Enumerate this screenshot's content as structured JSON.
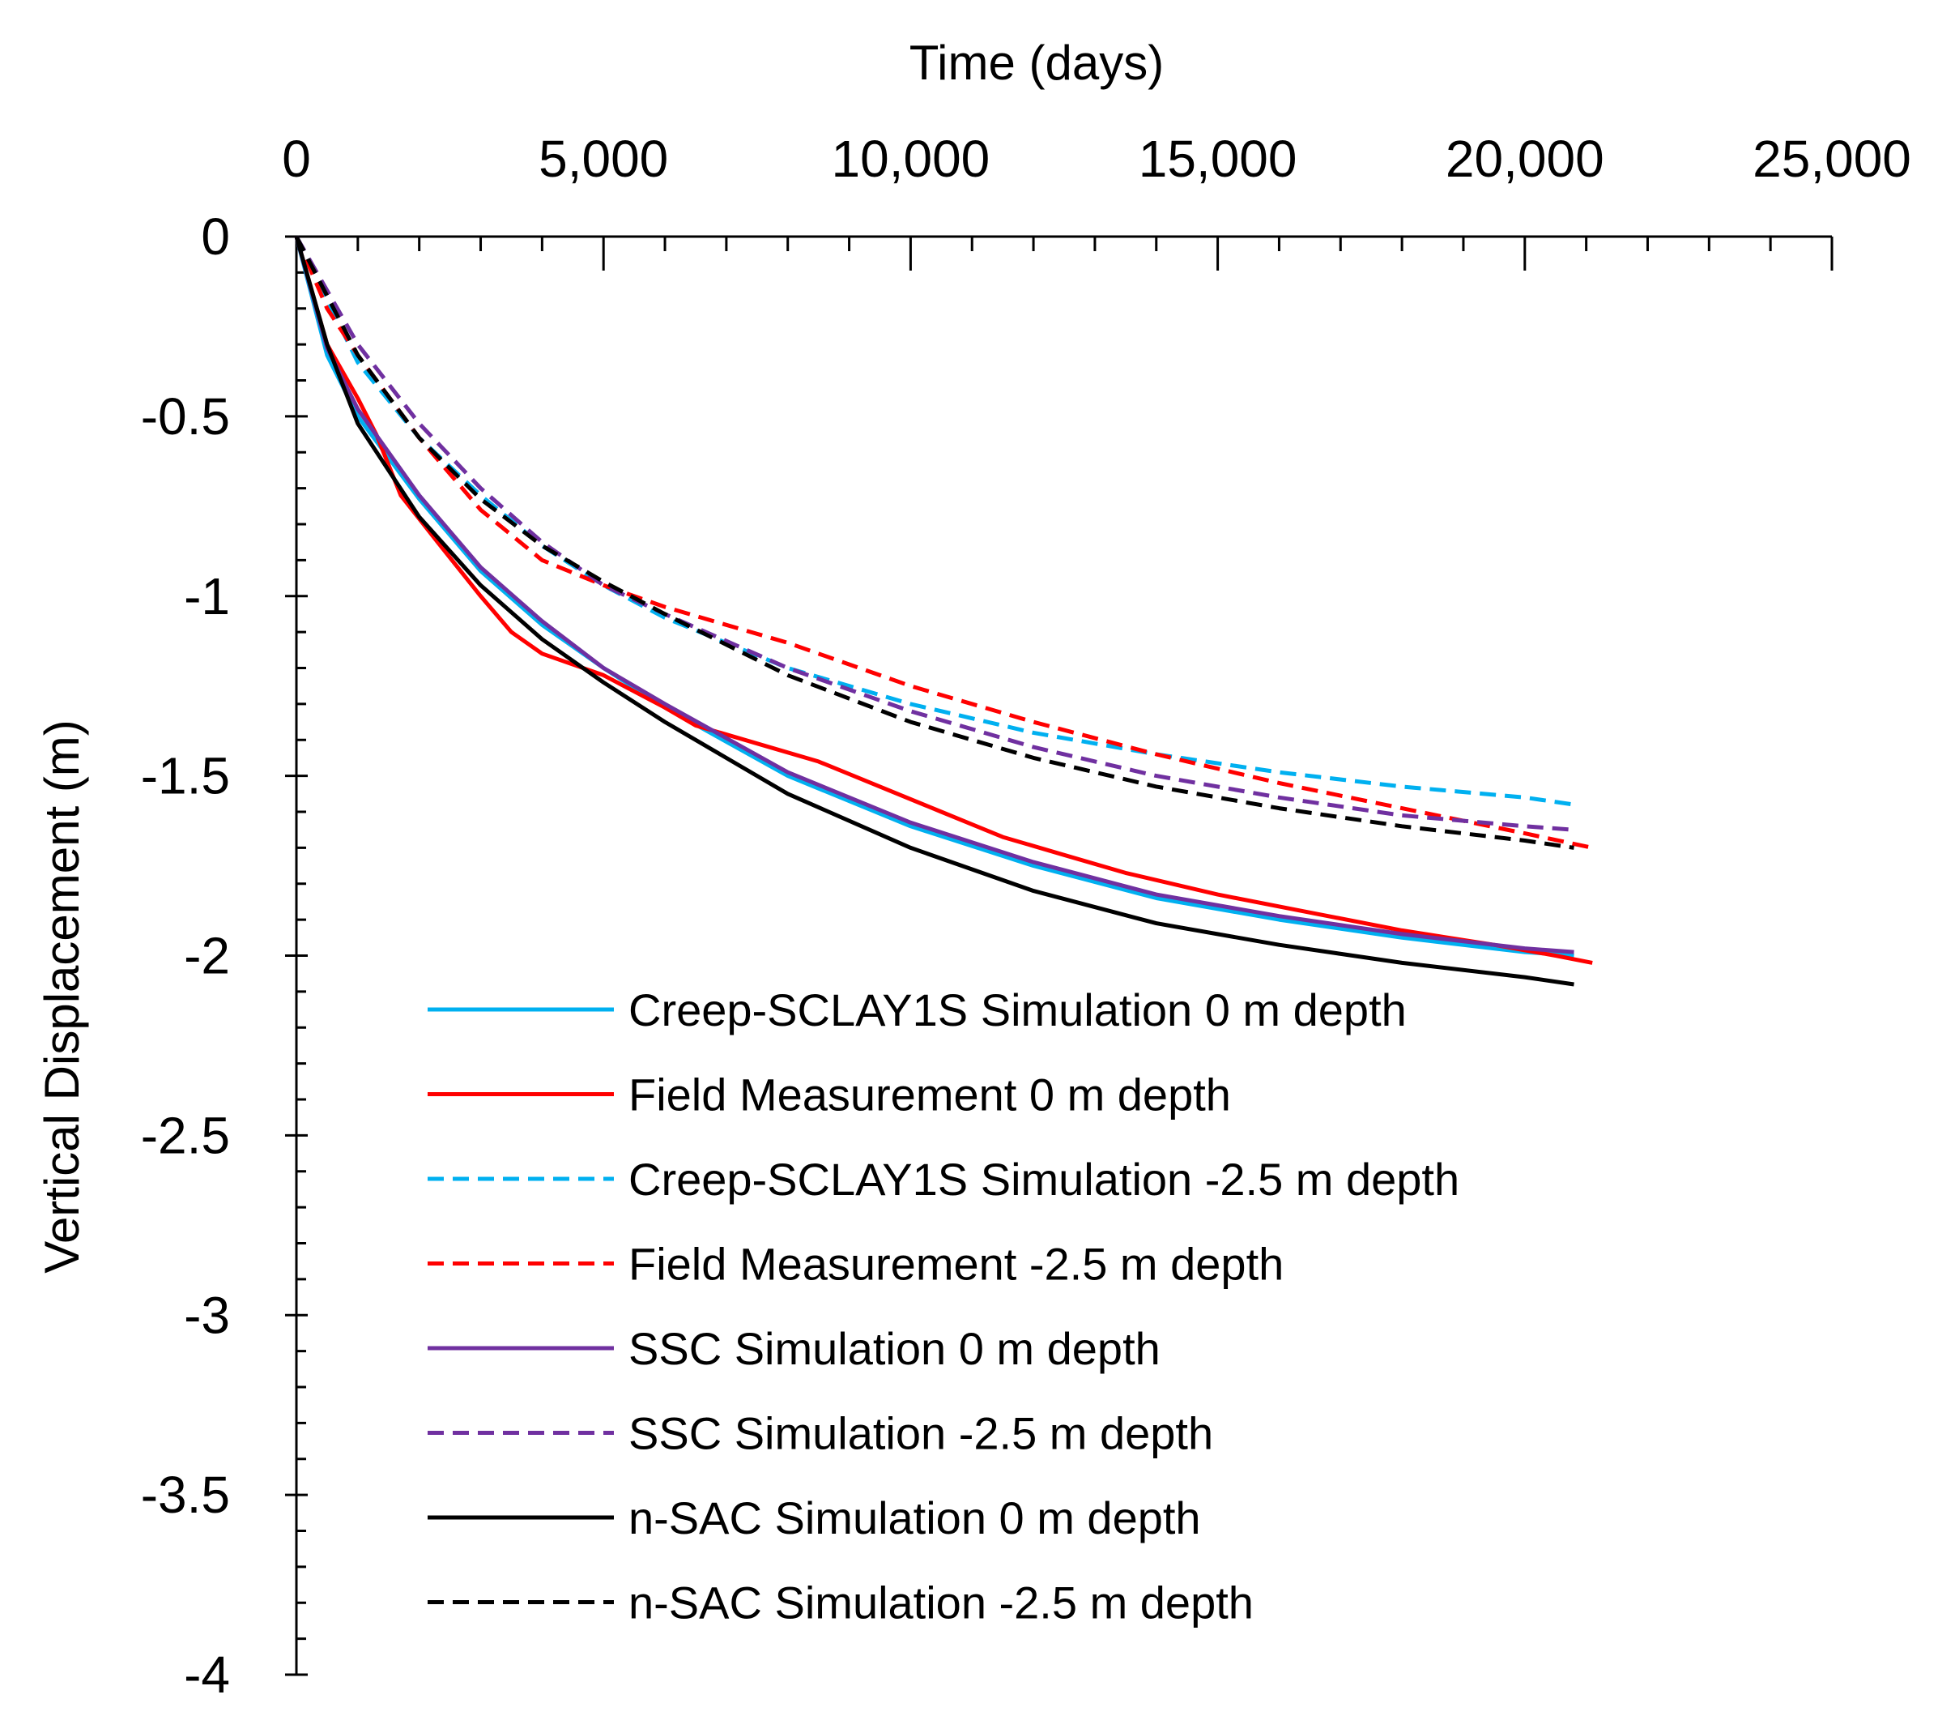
{
  "chart_data": {
    "type": "line",
    "xlabel": "Time (days)",
    "ylabel": "Vertical Displacement (m)",
    "x_axis_position": "top",
    "xlim": [
      0,
      25000
    ],
    "ylim": [
      -4,
      0
    ],
    "x_ticks": [
      0,
      5000,
      10000,
      15000,
      20000,
      25000
    ],
    "x_tick_labels": [
      "0",
      "5,000",
      "10,000",
      "15,000",
      "20,000",
      "25,000"
    ],
    "y_ticks": [
      0,
      -0.5,
      -1,
      -1.5,
      -2,
      -2.5,
      -3,
      -3.5,
      -4
    ],
    "y_tick_labels": [
      "0",
      "-0.5",
      "-1",
      "-1.5",
      "-2",
      "-2.5",
      "-3",
      "-3.5",
      "-4"
    ],
    "grid": false,
    "legend_position": "lower-center",
    "series": [
      {
        "name": "Creep-SCLAY1S  Simulation 0 m depth",
        "color": "#00b0f0",
        "dash": "solid",
        "x": [
          0,
          500,
          1000,
          2000,
          3000,
          4000,
          5000,
          6000,
          8000,
          10000,
          12000,
          14000,
          16000,
          18000,
          20000,
          20800
        ],
        "y": [
          0,
          -0.33,
          -0.5,
          -0.73,
          -0.93,
          -1.08,
          -1.2,
          -1.31,
          -1.5,
          -1.64,
          -1.75,
          -1.84,
          -1.9,
          -1.95,
          -1.99,
          -2.0
        ]
      },
      {
        "name": "Field Measurement 0 m depth",
        "color": "#ff0000",
        "dash": "solid",
        "x": [
          0,
          500,
          1000,
          1300,
          1700,
          2300,
          3000,
          3500,
          4000,
          5000,
          6000,
          6500,
          7500,
          8500,
          9500,
          10500,
          11500,
          12500,
          13500,
          15000,
          16500,
          18000,
          19500,
          20500,
          21100
        ],
        "y": [
          0,
          -0.3,
          -0.45,
          -0.55,
          -0.72,
          -0.85,
          -1.0,
          -1.1,
          -1.16,
          -1.22,
          -1.31,
          -1.36,
          -1.41,
          -1.46,
          -1.53,
          -1.6,
          -1.67,
          -1.72,
          -1.77,
          -1.83,
          -1.88,
          -1.93,
          -1.97,
          -2.0,
          -2.02
        ]
      },
      {
        "name": "Creep-SCLAY1S  Simulation  -2.5 m depth",
        "color": "#00b0f0",
        "dash": "dashed",
        "x": [
          0,
          1000,
          2000,
          3000,
          4000,
          5000,
          6000,
          8000,
          10000,
          12000,
          14000,
          16000,
          18000,
          20000,
          20800
        ],
        "y": [
          0,
          -0.35,
          -0.56,
          -0.72,
          -0.86,
          -0.97,
          -1.06,
          -1.2,
          -1.3,
          -1.38,
          -1.44,
          -1.49,
          -1.53,
          -1.56,
          -1.58
        ]
      },
      {
        "name": "Field Measurement -2.5 m depth",
        "color": "#ff0000",
        "dash": "dashed",
        "x": [
          0,
          500,
          1000,
          2000,
          3000,
          4000,
          5000,
          6000,
          7000,
          8000,
          10000,
          12000,
          14000,
          16000,
          18000,
          20000,
          21100
        ],
        "y": [
          0,
          -0.2,
          -0.33,
          -0.56,
          -0.76,
          -0.9,
          -0.97,
          -1.03,
          -1.08,
          -1.13,
          -1.25,
          -1.35,
          -1.44,
          -1.52,
          -1.59,
          -1.66,
          -1.7
        ]
      },
      {
        "name": "SSC Simulation 0 m depth",
        "color": "#7030a0",
        "dash": "solid",
        "x": [
          0,
          500,
          1000,
          2000,
          3000,
          4000,
          5000,
          6000,
          8000,
          10000,
          12000,
          14000,
          16000,
          18000,
          20000,
          20800
        ],
        "y": [
          0,
          -0.31,
          -0.48,
          -0.72,
          -0.92,
          -1.07,
          -1.2,
          -1.3,
          -1.49,
          -1.63,
          -1.74,
          -1.83,
          -1.89,
          -1.94,
          -1.98,
          -1.99
        ]
      },
      {
        "name": "SSC Simulation  -2.5 m depth",
        "color": "#7030a0",
        "dash": "dashed",
        "x": [
          0,
          1000,
          2000,
          3000,
          4000,
          5000,
          6000,
          8000,
          10000,
          12000,
          14000,
          16000,
          18000,
          20000,
          20800
        ],
        "y": [
          0,
          -0.3,
          -0.52,
          -0.7,
          -0.85,
          -0.97,
          -1.05,
          -1.2,
          -1.32,
          -1.42,
          -1.5,
          -1.56,
          -1.61,
          -1.64,
          -1.65
        ]
      },
      {
        "name": "n-SAC Simulation 0 m depth",
        "color": "#000000",
        "dash": "solid",
        "x": [
          0,
          500,
          1000,
          2000,
          3000,
          4000,
          5000,
          6000,
          8000,
          10000,
          12000,
          14000,
          16000,
          18000,
          20000,
          20800
        ],
        "y": [
          0,
          -0.3,
          -0.52,
          -0.78,
          -0.97,
          -1.12,
          -1.24,
          -1.35,
          -1.55,
          -1.7,
          -1.82,
          -1.91,
          -1.97,
          -2.02,
          -2.06,
          -2.08
        ]
      },
      {
        "name": "n-SAC  Simulation  -2.5 m depth",
        "color": "#000000",
        "dash": "dashed",
        "x": [
          0,
          1000,
          2000,
          3000,
          4000,
          5000,
          6000,
          8000,
          10000,
          12000,
          14000,
          16000,
          18000,
          20000,
          20800
        ],
        "y": [
          0,
          -0.33,
          -0.56,
          -0.73,
          -0.86,
          -0.96,
          -1.05,
          -1.22,
          -1.35,
          -1.45,
          -1.53,
          -1.59,
          -1.64,
          -1.68,
          -1.7
        ]
      }
    ]
  }
}
